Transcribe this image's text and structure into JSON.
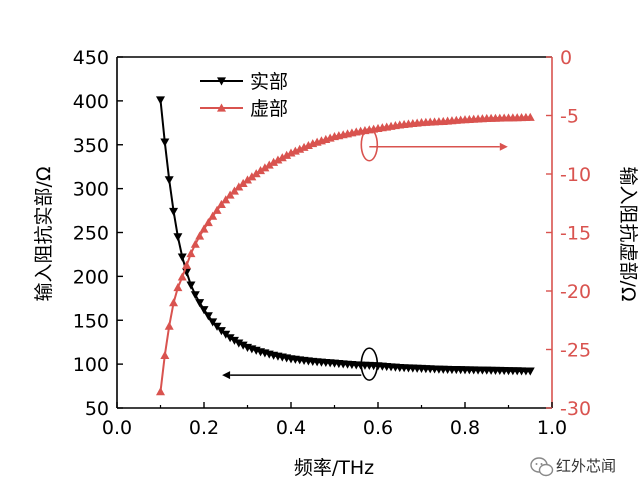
{
  "chart_data": {
    "type": "line",
    "xlabel": "频率/THz",
    "ylabel_left": "输入阻抗实部/Ω",
    "ylabel_right": "输入阻抗虚部/Ω",
    "xlim": [
      0.0,
      1.0
    ],
    "ylim_left": [
      50,
      450
    ],
    "ylim_right": [
      -30,
      0
    ],
    "x_ticks": [
      "0.0",
      "0.2",
      "0.4",
      "0.6",
      "0.8",
      "1.0"
    ],
    "y_left_ticks": [
      "50",
      "100",
      "150",
      "200",
      "250",
      "300",
      "350",
      "400",
      "450"
    ],
    "y_right_ticks": [
      "-30",
      "-25",
      "-20",
      "-15",
      "-10",
      "-5",
      "0"
    ],
    "grid": false,
    "legend_position": "top-left",
    "series": [
      {
        "name": "实部",
        "axis": "left",
        "color": "#000000",
        "marker": "triangle-down",
        "x": [
          0.1,
          0.11,
          0.12,
          0.13,
          0.14,
          0.15,
          0.16,
          0.17,
          0.18,
          0.19,
          0.2,
          0.22,
          0.24,
          0.26,
          0.28,
          0.3,
          0.33,
          0.36,
          0.4,
          0.45,
          0.5,
          0.55,
          0.6,
          0.65,
          0.7,
          0.75,
          0.8,
          0.85,
          0.9,
          0.95
        ],
        "values": [
          401,
          353,
          310,
          274,
          245,
          222,
          205,
          190,
          179,
          170,
          162,
          148,
          138,
          130,
          124,
          119,
          114,
          110,
          106,
          103,
          101,
          99,
          98,
          96,
          95,
          94,
          93.5,
          93,
          92.5,
          92
        ]
      },
      {
        "name": "虚部",
        "axis": "right",
        "color": "#d9534f",
        "marker": "triangle-up",
        "x": [
          0.1,
          0.11,
          0.12,
          0.13,
          0.14,
          0.15,
          0.16,
          0.17,
          0.18,
          0.19,
          0.2,
          0.22,
          0.24,
          0.26,
          0.28,
          0.3,
          0.33,
          0.36,
          0.4,
          0.45,
          0.5,
          0.55,
          0.6,
          0.65,
          0.7,
          0.75,
          0.8,
          0.85,
          0.9,
          0.95
        ],
        "values": [
          -28.6,
          -25.5,
          -23.0,
          -21.0,
          -19.7,
          -18.8,
          -17.8,
          -16.8,
          -16.0,
          -15.3,
          -14.7,
          -13.6,
          -12.6,
          -11.8,
          -11.1,
          -10.5,
          -9.7,
          -9.0,
          -8.2,
          -7.4,
          -6.8,
          -6.4,
          -6.1,
          -5.8,
          -5.6,
          -5.5,
          -5.35,
          -5.25,
          -5.2,
          -5.15
        ]
      }
    ],
    "annotations": [
      {
        "type": "ellipse-arrow",
        "series": "虚部",
        "x": 0.58,
        "value": -7.5,
        "direction": "right"
      },
      {
        "type": "ellipse-arrow",
        "series": "实部",
        "x": 0.58,
        "value": 100,
        "direction": "left"
      }
    ]
  },
  "watermark": {
    "text": "红外芯闻",
    "icon": "wechat-icon"
  },
  "colors": {
    "real": "#000000",
    "imag": "#d9534f"
  }
}
